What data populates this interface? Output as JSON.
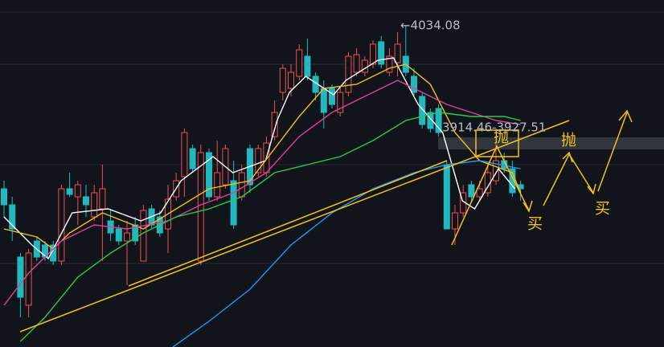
{
  "chart_data": {
    "type": "candlestick",
    "ylim": [
      3674.2,
      4063
    ],
    "up_color": "#ef4f4f",
    "down_color": "#22b8bf",
    "open": [
      3851.5,
      3833.5,
      3775,
      3721,
      3793,
      3788.5,
      3788.5,
      3770.5,
      3851.5,
      3842.5,
      3842.5,
      3820,
      3829,
      3815.5,
      3806.5,
      3793,
      3811,
      3770.5,
      3829,
      3820,
      3806.5,
      3842.5,
      3865,
      3896.5,
      3770.5,
      3892,
      3842.5,
      3856,
      3860.5,
      3842.5,
      3896.5,
      3869.5,
      3869.5,
      3910,
      3959.5,
      3964,
      3977.5,
      4000,
      3977.5,
      3964,
      3964,
      3937,
      3959.5,
      3982,
      3982,
      3991,
      4016.2,
      3982,
      3992.8,
      4000,
      3977.5,
      3955,
      3937,
      3941.5,
      3878.5,
      3806.5,
      3824.5,
      3856,
      3842.5,
      3847,
      3860.5,
      3883,
      3874,
      3856
    ],
    "high": [
      3860.5,
      3842.5,
      3779.5,
      3784,
      3797.5,
      3793,
      3793,
      3856,
      3869.5,
      3860.5,
      3856,
      3856,
      3878.5,
      3829,
      3811,
      3815.5,
      3820,
      3833.5,
      3833.5,
      3827.2,
      3856,
      3869.5,
      3919,
      3901,
      3901,
      3896.5,
      3905.5,
      3901,
      3883,
      3878.5,
      3901,
      3901,
      3910,
      3950.5,
      3991,
      3991,
      4013.5,
      4019.8,
      3982,
      3973,
      3968.5,
      3965.8,
      4004.5,
      4009,
      4000,
      4018,
      4022.5,
      4009,
      4027,
      4034.08,
      3986.5,
      3959.5,
      3941.5,
      3946,
      3883,
      3833.5,
      3856,
      3860.5,
      3860.5,
      3878.5,
      3905.5,
      3892,
      3883,
      3860.5
    ],
    "low": [
      3820,
      3793,
      3707.5,
      3707.5,
      3770.5,
      3770.5,
      3766,
      3766,
      3842.5,
      3811,
      3820,
      3815.5,
      3770.5,
      3793,
      3788.5,
      3743.5,
      3788.5,
      3770.5,
      3806.5,
      3797.5,
      3779.5,
      3838,
      3842.5,
      3869.5,
      3766,
      3838,
      3838,
      3851.5,
      3806.5,
      3838,
      3847,
      3865,
      3865,
      3905.5,
      3950.5,
      3955,
      3973,
      3973,
      3950.5,
      3919,
      3941.5,
      3932.5,
      3955,
      3977.5,
      3977.5,
      3986.5,
      3986.5,
      3977.5,
      3977.5,
      3977.5,
      3955,
      3919,
      3914.5,
      3910,
      3806.5,
      3788.5,
      3820,
      3838,
      3838,
      3842.5,
      3856,
      3869.5,
      3842.5,
      3838
    ],
    "close": [
      3833.5,
      3806.5,
      3730,
      3779.5,
      3775,
      3775,
      3770.5,
      3851.5,
      3845.2,
      3856,
      3833.5,
      3847,
      3851.5,
      3802,
      3793,
      3802,
      3793,
      3827.2,
      3811,
      3802,
      3839.8,
      3860.5,
      3914.5,
      3874,
      3892,
      3842.5,
      3869.5,
      3896.5,
      3811,
      3869.5,
      3856,
      3896.5,
      3902.8,
      3937,
      3986.5,
      3982,
      4007.2,
      3977.5,
      3959.5,
      3937,
      3946,
      3959.5,
      4000,
      4001.8,
      3995.5,
      4013.5,
      3991,
      4000,
      4013.5,
      3982,
      3959.5,
      3923.5,
      3919,
      3914.5,
      3806.5,
      3824.5,
      3847,
      3842.5,
      3851.5,
      3869.5,
      3883,
      3874,
      3847,
      3851.5
    ],
    "lines": [
      {
        "color": "#ffffff",
        "x": [
          0,
          3.4,
          5.4,
          8.3,
          12.7,
          16.7,
          19.1,
          21.6,
          25.5,
          27.9,
          31.9,
          33.3,
          34.8,
          36.8,
          40.2,
          41.7,
          45.6,
          47.5,
          50.5,
          53.5,
          55.9,
          57.4,
          60.3,
          62.3
        ],
        "values": [
          3820,
          3788.5,
          3773.2,
          3824.5,
          3829,
          3815.5,
          3824.5,
          3860.5,
          3887.5,
          3869.5,
          3883,
          3928,
          3959.5,
          3977.5,
          3956.8,
          3973,
          3995.5,
          3998.2,
          3946,
          3914.5,
          3838,
          3829,
          3874,
          3851.5
        ]
      },
      {
        "color": "#f2c21b",
        "x": [
          0,
          4,
          6,
          8,
          12,
          17,
          21,
          25,
          30,
          33,
          36,
          39,
          43,
          47,
          49,
          52,
          55,
          58,
          62,
          63
        ],
        "values": [
          3806.5,
          3797.5,
          3784,
          3802,
          3824.5,
          3806.5,
          3829,
          3851.5,
          3860.5,
          3896.5,
          3932.5,
          3964,
          3968.5,
          3986.5,
          3991,
          3968.5,
          3914.5,
          3883,
          3869.5,
          3847
        ]
      },
      {
        "color": "#e0409a",
        "x": [
          0,
          3,
          7,
          11,
          15,
          20,
          24,
          28,
          32,
          36,
          40,
          44,
          48,
          51,
          54,
          57,
          60,
          63
        ],
        "values": [
          3721,
          3757,
          3793,
          3811,
          3806.5,
          3815.5,
          3833.5,
          3847,
          3869.5,
          3910,
          3937,
          3955,
          3973,
          3959.5,
          3946,
          3937,
          3928,
          3923.5
        ]
      },
      {
        "color": "#2ec84a",
        "x": [
          2,
          5,
          9,
          13,
          17,
          21,
          25,
          29,
          33,
          37,
          41,
          45,
          49,
          53,
          57,
          61,
          63
        ],
        "values": [
          3680.5,
          3707.5,
          3752.5,
          3779.5,
          3802,
          3820,
          3829,
          3842.5,
          3869.5,
          3878.5,
          3887.5,
          3905.5,
          3928,
          3937,
          3932.5,
          3932.5,
          3928
        ]
      },
      {
        "color": "#2196f3",
        "x": [
          20.6,
          25,
          30,
          35,
          40,
          45,
          50,
          54,
          58,
          63
        ],
        "values": [
          3674.2,
          3703,
          3739,
          3788.5,
          3824.5,
          3851.5,
          3869.5,
          3878.5,
          3883,
          3874
        ]
      }
    ],
    "high_label": "←4034.08",
    "range_label": "3914.46-3927.51",
    "signals": [
      "抛",
      "买",
      "抛",
      "买"
    ]
  }
}
